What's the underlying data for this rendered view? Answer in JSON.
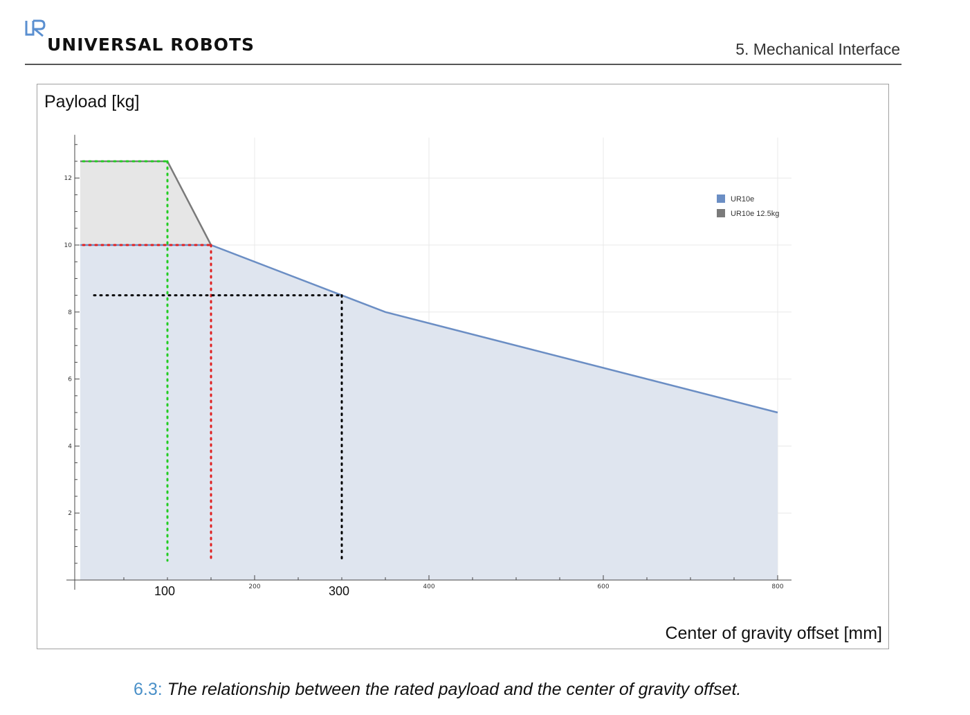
{
  "header": {
    "logo_mark": "UR",
    "logo_text": "UNIVERSAL ROBOTS",
    "section_title": "5. Mechanical Interface"
  },
  "colors": {
    "ur10e_line": "#6b8ec4",
    "ur10e_fill": "#dfe5ef",
    "ur10e_125_line": "#7a7a7a",
    "ur10e_125_fill": "#e6e6e6",
    "guide_green": "#22cc22",
    "guide_red": "#e02020",
    "guide_black": "#000000"
  },
  "chart_data": {
    "type": "area",
    "title": "",
    "ylabel": "Payload [kg]",
    "xlabel": "Center of gravity offset [mm]",
    "xlim": [
      0,
      800
    ],
    "ylim": [
      0,
      13
    ],
    "x_ticks": [
      200,
      400,
      600,
      800
    ],
    "y_ticks": [
      2,
      4,
      6,
      8,
      10,
      12
    ],
    "grid": true,
    "legend_position": "top-right",
    "series": [
      {
        "name": "UR10e",
        "x": [
          0,
          150,
          300,
          350,
          800
        ],
        "y": [
          10,
          10,
          8.5,
          8,
          5
        ]
      },
      {
        "name": "UR10e 12.5kg",
        "x": [
          0,
          100,
          150
        ],
        "y": [
          12.5,
          12.5,
          10
        ]
      }
    ],
    "annotations": [
      {
        "label": "100",
        "x": 100,
        "y": 12.5,
        "color": "green"
      },
      {
        "label": "",
        "x": 150,
        "y": 10,
        "color": "red"
      },
      {
        "label": "300",
        "x": 300,
        "y": 8.5,
        "color": "black"
      }
    ]
  },
  "caption": {
    "number": "6.3:",
    "text": "The relationship between the rated payload and the center of gravity offset."
  }
}
